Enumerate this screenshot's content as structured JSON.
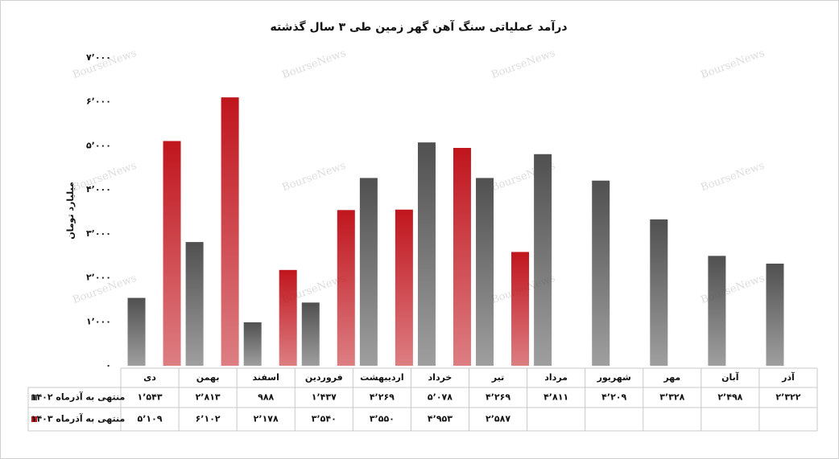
{
  "chart_data": {
    "type": "bar",
    "title": "درآمد عملیاتی سنگ آهن گهر زمین طی ۳ سال گذشته",
    "y_label": "میلیارد تومان",
    "watermark": "BourseNews",
    "categories": [
      "دی",
      "بهمن",
      "اسفند",
      "فروردین",
      "اردیبهشت",
      "خرداد",
      "تیر",
      "مرداد",
      "شهریور",
      "مهر",
      "آبان",
      "آذر"
    ],
    "series": [
      {
        "name": "منتهی به آذرماه ۱۴۰۲",
        "color": "#505050",
        "values": [
          1543,
          2813,
          988,
          1437,
          4269,
          5078,
          4269,
          4811,
          4209,
          3328,
          2498,
          2322
        ],
        "value_labels": [
          "۱٬۵۴۳",
          "۲٬۸۱۳",
          "۹۸۸",
          "۱٬۴۳۷",
          "۴٬۲۶۹",
          "۵٬۰۷۸",
          "۴٬۲۶۹",
          "۴٬۸۱۱",
          "۴٬۲۰۹",
          "۳٬۳۲۸",
          "۲٬۴۹۸",
          "۲٬۳۲۲"
        ]
      },
      {
        "name": "منتهی به آذرماه ۱۴۰۳",
        "color": "#c0151d",
        "values": [
          5109,
          6102,
          2178,
          3540,
          3550,
          4953,
          2587,
          null,
          null,
          null,
          null,
          null
        ],
        "value_labels": [
          "۵٬۱۰۹",
          "۶٬۱۰۲",
          "۲٬۱۷۸",
          "۳٬۵۴۰",
          "۳٬۵۵۰",
          "۴٬۹۵۳",
          "۲٬۵۸۷",
          null,
          null,
          null,
          null,
          null
        ]
      }
    ],
    "ylim": [
      0,
      7000
    ],
    "yticks": [
      {
        "value": 0,
        "label": "۰"
      },
      {
        "value": 1000,
        "label": "۱٬۰۰۰"
      },
      {
        "value": 2000,
        "label": "۲٬۰۰۰"
      },
      {
        "value": 3000,
        "label": "۳٬۰۰۰"
      },
      {
        "value": 4000,
        "label": "۴٬۰۰۰"
      },
      {
        "value": 5000,
        "label": "۵٬۰۰۰"
      },
      {
        "value": 6000,
        "label": "۶٬۰۰۰"
      },
      {
        "value": 7000,
        "label": "۷٬۰۰۰"
      }
    ]
  }
}
